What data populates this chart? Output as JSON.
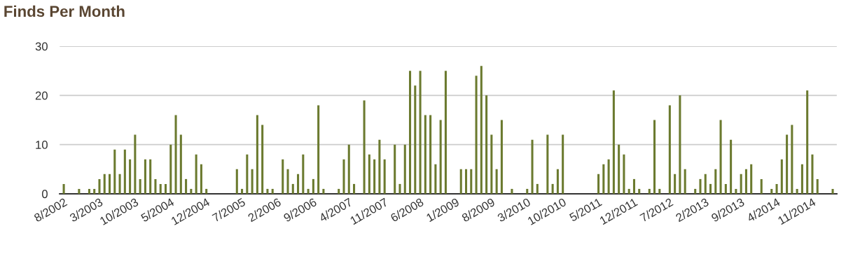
{
  "chart_data": {
    "type": "bar",
    "title": "Finds Per Month",
    "categories": [
      "8/2002",
      null,
      null,
      null,
      null,
      null,
      null,
      "3/2003",
      null,
      null,
      null,
      null,
      null,
      null,
      "10/2003",
      null,
      null,
      null,
      null,
      null,
      null,
      "5/2004",
      null,
      null,
      null,
      null,
      null,
      null,
      "12/2004",
      null,
      null,
      null,
      null,
      null,
      null,
      "7/2005",
      null,
      null,
      null,
      null,
      null,
      null,
      "2/2006",
      null,
      null,
      null,
      null,
      null,
      null,
      "9/2006",
      null,
      null,
      null,
      null,
      null,
      null,
      "4/2007",
      null,
      null,
      null,
      null,
      null,
      null,
      "11/2007",
      null,
      null,
      null,
      null,
      null,
      null,
      "6/2008",
      null,
      null,
      null,
      null,
      null,
      null,
      "1/2009",
      null,
      null,
      null,
      null,
      null,
      null,
      "8/2009",
      null,
      null,
      null,
      null,
      null,
      null,
      "3/2010",
      null,
      null,
      null,
      null,
      null,
      null,
      "10/2010",
      null,
      null,
      null,
      null,
      null,
      null,
      "5/2011",
      null,
      null,
      null,
      null,
      null,
      null,
      "12/2011",
      null,
      null,
      null,
      null,
      null,
      null,
      "7/2012",
      null,
      null,
      null,
      null,
      null,
      null,
      "2/2013",
      null,
      null,
      null,
      null,
      null,
      null,
      "9/2013",
      null,
      null,
      null,
      null,
      null,
      null,
      "4/2014",
      null,
      null,
      null,
      null,
      null,
      null,
      "11/2014",
      null,
      null,
      null,
      null
    ],
    "values": [
      2,
      0,
      0,
      1,
      0,
      1,
      1,
      3,
      4,
      4,
      9,
      4,
      9,
      7,
      12,
      3,
      7,
      7,
      3,
      2,
      2,
      10,
      16,
      12,
      3,
      1,
      8,
      6,
      1,
      0,
      0,
      0,
      0,
      0,
      5,
      1,
      8,
      5,
      16,
      14,
      1,
      1,
      0,
      7,
      5,
      2,
      4,
      8,
      1,
      3,
      18,
      1,
      0,
      0,
      1,
      7,
      10,
      2,
      0,
      19,
      8,
      7,
      11,
      7,
      0,
      10,
      2,
      10,
      25,
      22,
      25,
      16,
      16,
      6,
      15,
      25,
      0,
      0,
      5,
      5,
      5,
      24,
      26,
      20,
      12,
      5,
      15,
      0,
      1,
      0,
      0,
      1,
      11,
      2,
      0,
      12,
      2,
      5,
      12,
      0,
      0,
      0,
      0,
      0,
      0,
      4,
      6,
      7,
      21,
      10,
      8,
      1,
      3,
      1,
      0,
      1,
      15,
      1,
      0,
      18,
      4,
      20,
      5,
      0,
      1,
      3,
      4,
      2,
      5,
      15,
      2,
      11,
      1,
      4,
      5,
      6,
      0,
      3,
      0,
      1,
      2,
      7,
      12,
      14,
      1,
      6,
      21,
      8,
      3,
      0,
      0,
      1
    ],
    "color": "#6b7a2f",
    "ylim": [
      0,
      30
    ],
    "yticks": [
      0,
      10,
      20,
      30
    ],
    "grid": "y"
  }
}
